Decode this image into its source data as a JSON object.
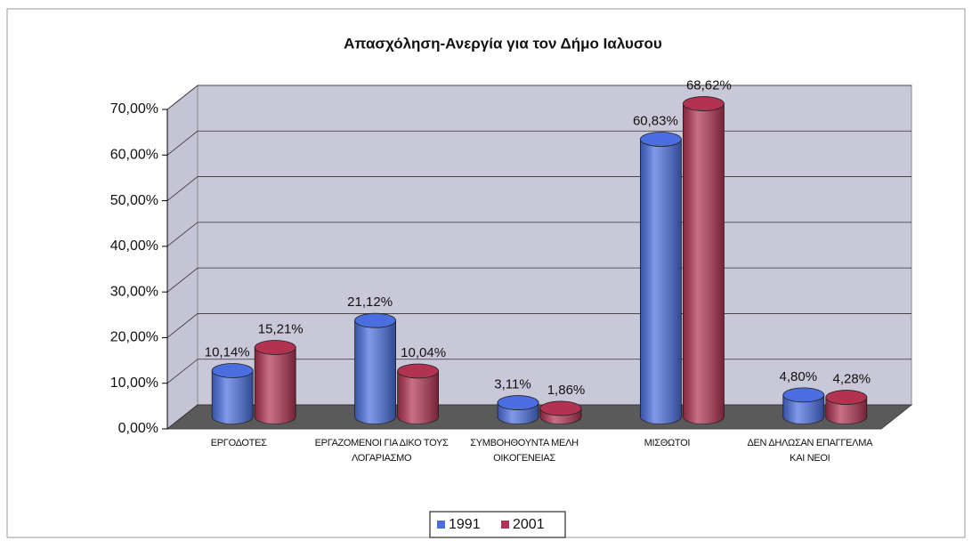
{
  "chart_data": {
    "type": "bar3d",
    "title": "Απασχόληση-Ανεργία για τον Δήμο Ιαλυσου",
    "categories": [
      "ΕΡΓΟΔΟΤΕΣ",
      "ΕΡΓΑΖΟΜΕΝΟΙ ΓΙΑ ΔΙΚΟ ΤΟΥΣ ΛΟΓΑΡΙΑΣΜΟ",
      "ΣΥΜΒΟΗΘΟΥΝΤΑ ΜΕΛΗ ΟΙΚΟΓΕΝΕΙΑΣ",
      "ΜΙΣΘΩΤΟΙ",
      "ΔΕΝ ΔΗΛΩΣΑΝ ΕΠΑΓΓΕΛΜΑ ΚΑΙ ΝΕΟΙ"
    ],
    "series": [
      {
        "name": "1991",
        "color": "#4a6ee0",
        "values": [
          10.14,
          21.12,
          3.11,
          60.83,
          4.8
        ],
        "value_labels": [
          "10,14%",
          "21,12%",
          "3,11%",
          "60,83%",
          "4,80%"
        ]
      },
      {
        "name": "2001",
        "color": "#b23252",
        "values": [
          15.21,
          10.04,
          1.86,
          68.62,
          4.28
        ],
        "value_labels": [
          "15,21%",
          "10,04%",
          "1,86%",
          "68,62%",
          "4,28%"
        ]
      }
    ],
    "ylim": [
      0,
      70
    ],
    "yticks": [
      {
        "value": 0,
        "label": "0,00%"
      },
      {
        "value": 10,
        "label": "10,00%"
      },
      {
        "value": 20,
        "label": "20,00%"
      },
      {
        "value": 30,
        "label": "30,00%"
      },
      {
        "value": 40,
        "label": "40,00%"
      },
      {
        "value": 50,
        "label": "50,00%"
      },
      {
        "value": 60,
        "label": "60,00%"
      },
      {
        "value": 70,
        "label": "70,00%"
      }
    ],
    "grid": true,
    "legend": "bottom"
  }
}
